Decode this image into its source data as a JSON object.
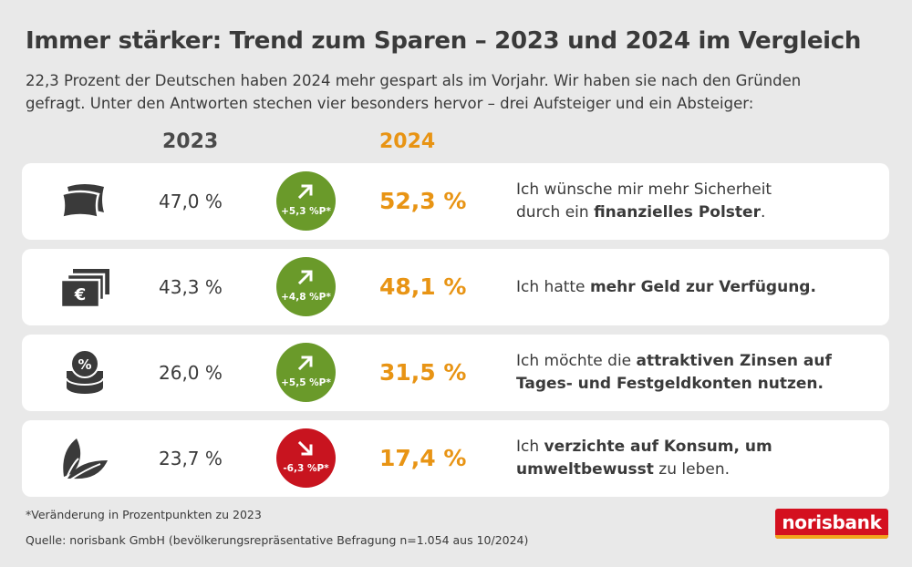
{
  "header": {
    "title": "Immer stärker: Trend zum Sparen – 2023 und 2024 im Vergleich",
    "subtitle_line1": "22,3 Prozent der Deutschen haben 2024 mehr gespart als im Vorjahr. Wir haben sie nach den Gründen",
    "subtitle_line2": "gefragt. Unter den Antworten stechen vier besonders hervor – drei Aufsteiger und ein Absteiger:"
  },
  "columns": {
    "year1": "2023",
    "year2": "2024"
  },
  "colors": {
    "up": "#6a9a2a",
    "down": "#c8141f",
    "accent": "#e89414",
    "brand": "#d4101f"
  },
  "chart_data": {
    "type": "table",
    "categories": [
      "Ich wünsche mir mehr Sicherheit durch ein finanzielles Polster.",
      "Ich hatte mehr Geld zur Verfügung.",
      "Ich möchte die attraktiven Zinsen auf Tages- und Festgeldkonten nutzen.",
      "Ich verzichte auf Konsum, um umweltbewusst zu leben."
    ],
    "series": [
      {
        "name": "2023",
        "values": [
          47.0,
          43.3,
          26.0,
          23.7
        ]
      },
      {
        "name": "2024",
        "values": [
          52.3,
          48.1,
          31.5,
          17.4
        ]
      }
    ],
    "change_pp": [
      5.3,
      4.8,
      5.5,
      -6.3
    ]
  },
  "rows": [
    {
      "icon": "pillow-icon",
      "v2023": "47,0 %",
      "change": "+5,3 %P*",
      "direction": "up",
      "v2024": "52,3 %",
      "reason_l1": "Ich wünsche mir mehr Sicherheit",
      "reason_l2_a": "durch ein ",
      "reason_l2_b": "finanzielles Polster",
      "reason_l2_c": "."
    },
    {
      "icon": "money-icon",
      "v2023": "43,3 %",
      "change": "+4,8 %P*",
      "direction": "up",
      "v2024": "48,1 %",
      "reason_a": "Ich hatte ",
      "reason_b": "mehr Geld zur Verfügung."
    },
    {
      "icon": "coins-percent-icon",
      "v2023": "26,0 %",
      "change": "+5,5 %P*",
      "direction": "up",
      "v2024": "31,5 %",
      "reason_l1_a": "Ich möchte die ",
      "reason_l1_b": "attraktiven Zinsen auf",
      "reason_l2": "Tages- und Festgeldkonten nutzen."
    },
    {
      "icon": "leaves-icon",
      "v2023": "23,7 %",
      "change": "-6,3 %P*",
      "direction": "down",
      "v2024": "17,4 %",
      "reason_l1_a": "Ich ",
      "reason_l1_b": "verzichte auf Konsum, um",
      "reason_l2_a": "umweltbewusst",
      "reason_l2_b": " zu leben."
    }
  ],
  "footer": {
    "footnote": "*Veränderung in Prozentpunkten zu 2023",
    "source": "Quelle: norisbank GmbH (bevölkerungsrepräsentative Befragung n=1.054 aus 10/2024)",
    "logo": "norisbank"
  }
}
